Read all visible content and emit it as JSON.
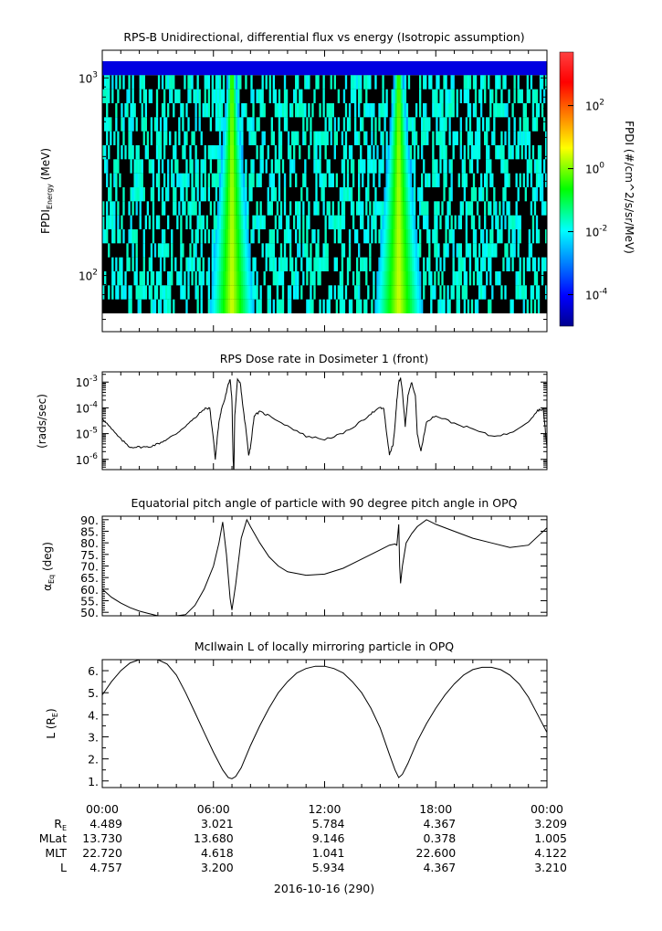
{
  "chart_data": [
    {
      "type": "heatmap",
      "title": "RPS-B  Unidirectional, differential flux vs energy (Isotropic assumption)",
      "ylabel": "FPDI",
      "ylabel_sub": "Energy",
      "ylabel_unit": " (MeV)",
      "y_scale": "log",
      "ylim": [
        52,
        1380
      ],
      "yticks": [
        {
          "value": 100,
          "base": "10",
          "exp": "2"
        },
        {
          "value": 1000,
          "base": "10",
          "exp": "3"
        }
      ],
      "energy_channels": 18,
      "time_bins": 240,
      "colorbar": {
        "label": "FPDI (#/cm^2/s/sr/MeV)",
        "scale": "log",
        "range": [
          1e-05,
          5000
        ],
        "ticks": [
          {
            "value": 0.0001,
            "base": "10",
            "exp": "-4"
          },
          {
            "value": 0.01,
            "base": "10",
            "exp": "-2"
          },
          {
            "value": 1,
            "base": "10",
            "exp": "0"
          },
          {
            "value": 100,
            "base": "10",
            "exp": "2"
          }
        ]
      },
      "features": [
        {
          "name": "",
          "center_hour": 7.0,
          "width_low_hours": 1.2,
          "width_high_hours": 0.2,
          "peak_flux": 3
        },
        {
          "name": "",
          "center_hour": 16.0,
          "width_low_hours": 1.3,
          "width_high_hours": 0.2,
          "peak_flux": 3
        }
      ],
      "low_count_flux": 0.02,
      "top_channel_flux": 5e-05
    },
    {
      "type": "line",
      "title": "RPS  Dose rate in Dosimeter 1 (front)",
      "ylabel": "(rads/sec)",
      "y_scale": "log",
      "ylim": [
        4e-07,
        0.0025
      ],
      "yticks": [
        {
          "value": 1e-06,
          "base": "10",
          "exp": "-6"
        },
        {
          "value": 1e-05,
          "base": "10",
          "exp": "-5"
        },
        {
          "value": 0.0001,
          "base": "10",
          "exp": "-4"
        },
        {
          "value": 0.001,
          "base": "10",
          "exp": "-3"
        }
      ],
      "series": [
        {
          "x": [
            0,
            0.5,
            1,
            1.5,
            2,
            2.5,
            3,
            3.5,
            4,
            4.5,
            5,
            5.5,
            5.8,
            6.0,
            6.1,
            6.2,
            6.3,
            6.45,
            6.6,
            6.8,
            6.9,
            7.0,
            7.05,
            7.1,
            7.15,
            7.3,
            7.45,
            7.6,
            7.75,
            7.9,
            8.0,
            8.2,
            8.5,
            9,
            10,
            11,
            12,
            13,
            14,
            14.5,
            15,
            15.2,
            15.3,
            15.5,
            15.7,
            15.8,
            15.9,
            16.0,
            16.1,
            16.2,
            16.35,
            16.5,
            16.7,
            16.9,
            17.0,
            17.2,
            17.5,
            18,
            19,
            20,
            21,
            22,
            23,
            23.5,
            23.8,
            24
          ],
          "y": [
            4e-05,
            1.5e-05,
            6e-06,
            3e-06,
            3e-06,
            3e-06,
            4e-06,
            6e-06,
            1e-05,
            2e-05,
            4e-05,
            9e-05,
            0.0001,
            6e-06,
            1e-06,
            6e-06,
            3e-05,
            0.0001,
            0.0002,
            0.0008,
            0.0013,
            0.0002,
            2e-06,
            2e-07,
            5e-05,
            0.0012,
            0.0009,
            0.0001,
            1.5e-05,
            1.5e-06,
            3e-06,
            5e-05,
            7e-05,
            5e-05,
            2e-05,
            8e-06,
            6e-06,
            1e-05,
            3e-05,
            6e-05,
            0.0001,
            9e-05,
            2e-05,
            1.5e-06,
            4e-06,
            2e-05,
            0.0002,
            0.001,
            0.0015,
            0.0004,
            2e-05,
            0.0003,
            0.001,
            0.0003,
            1e-05,
            2e-06,
            3e-05,
            5e-05,
            2.5e-05,
            1.5e-05,
            8e-06,
            1e-05,
            3e-05,
            8e-05,
            9e-05,
            3e-06
          ]
        }
      ]
    },
    {
      "type": "line",
      "title": "Equatorial pitch angle of particle with 90 degree pitch angle in OPQ",
      "ylabel": "α",
      "ylabel_sub": "Eq",
      "ylabel_unit": " (deg)",
      "ylim": [
        48.5,
        91.5
      ],
      "yticks": [
        50,
        55,
        60,
        65,
        70,
        75,
        80,
        85,
        90
      ],
      "series": [
        {
          "x": [
            0,
            0.5,
            1,
            1.5,
            2,
            2.5,
            3,
            3.5,
            4,
            4.5,
            5,
            5.5,
            6,
            6.3,
            6.5,
            6.7,
            6.9,
            7.0,
            7.2,
            7.5,
            7.8,
            8,
            8.5,
            9,
            9.5,
            10,
            11,
            12,
            13,
            14,
            15,
            15.5,
            15.8,
            15.9,
            16.0,
            16.05,
            16.1,
            16.2,
            16.4,
            16.7,
            17,
            17.5,
            18,
            19,
            20,
            21,
            22,
            23,
            24
          ],
          "y": [
            60,
            56.5,
            54,
            52,
            50.5,
            49.5,
            48.5,
            48,
            48,
            49,
            53,
            60,
            70,
            80,
            89,
            75,
            56,
            51,
            62,
            82,
            90,
            87,
            80,
            74,
            70,
            67.5,
            66,
            66.5,
            69,
            73,
            77,
            79,
            79.5,
            79,
            88,
            70,
            62.5,
            70,
            80,
            84,
            87,
            90,
            88,
            85,
            82,
            80,
            78,
            79,
            86.5
          ]
        }
      ]
    },
    {
      "type": "line",
      "title": "McIlwain L of locally mirroring particle in OPQ",
      "ylabel": "L (R",
      "ylabel_sub": "E",
      "ylabel_unit": ")",
      "ylim": [
        0.7,
        6.5
      ],
      "yticks": [
        1,
        2,
        3,
        4,
        5,
        6
      ],
      "series": [
        {
          "x": [
            0,
            0.5,
            1,
            1.5,
            2,
            2.5,
            3,
            3.5,
            4,
            4.5,
            5,
            5.5,
            6,
            6.5,
            6.8,
            7,
            7.2,
            7.5,
            8,
            8.5,
            9,
            9.5,
            10,
            10.5,
            11,
            11.5,
            12,
            12.5,
            13,
            13.5,
            14,
            14.5,
            15,
            15.5,
            15.8,
            16,
            16.2,
            16.5,
            17,
            17.5,
            18,
            18.5,
            19,
            19.5,
            20,
            20.5,
            21,
            21.5,
            22,
            22.5,
            23,
            23.5,
            24
          ],
          "y": [
            4.9,
            5.5,
            6.0,
            6.35,
            6.6,
            6.7,
            6.6,
            6.3,
            5.8,
            5.0,
            4.1,
            3.2,
            2.3,
            1.5,
            1.15,
            1.1,
            1.2,
            1.6,
            2.6,
            3.5,
            4.3,
            5.0,
            5.5,
            5.9,
            6.1,
            6.2,
            6.2,
            6.1,
            5.9,
            5.5,
            5.0,
            4.3,
            3.4,
            2.2,
            1.5,
            1.15,
            1.3,
            1.8,
            2.8,
            3.6,
            4.3,
            4.9,
            5.4,
            5.8,
            6.05,
            6.15,
            6.15,
            6.05,
            5.8,
            5.4,
            4.8,
            4.0,
            3.2
          ]
        }
      ]
    }
  ],
  "time_axis": {
    "x_range_hours": [
      0,
      24
    ],
    "tick_labels": [
      {
        "hour": 0,
        "label": "00:00"
      },
      {
        "hour": 6,
        "label": "06:00"
      },
      {
        "hour": 12,
        "label": "12:00"
      },
      {
        "hour": 18,
        "label": "18:00"
      },
      {
        "hour": 24,
        "label": "00:00"
      }
    ],
    "minor_tick_hours": 1,
    "ephemeris": [
      {
        "label": "R",
        "label_sub": "E",
        "values": [
          "4.489",
          "3.021",
          "5.784",
          "4.367",
          "3.209"
        ]
      },
      {
        "label": "MLat",
        "label_sub": "",
        "values": [
          "13.730",
          "13.680",
          "9.146",
          "0.378",
          "1.005"
        ]
      },
      {
        "label": "MLT",
        "label_sub": "",
        "values": [
          "22.720",
          "4.618",
          "1.041",
          "22.600",
          "4.122"
        ]
      },
      {
        "label": "L",
        "label_sub": "",
        "values": [
          "4.757",
          "3.200",
          "5.934",
          "4.367",
          "3.210"
        ]
      }
    ],
    "date_label": "2016-10-16 (290)"
  },
  "colors": {
    "line": "#000000",
    "background": "#ffffff",
    "low_count": "#000000"
  }
}
